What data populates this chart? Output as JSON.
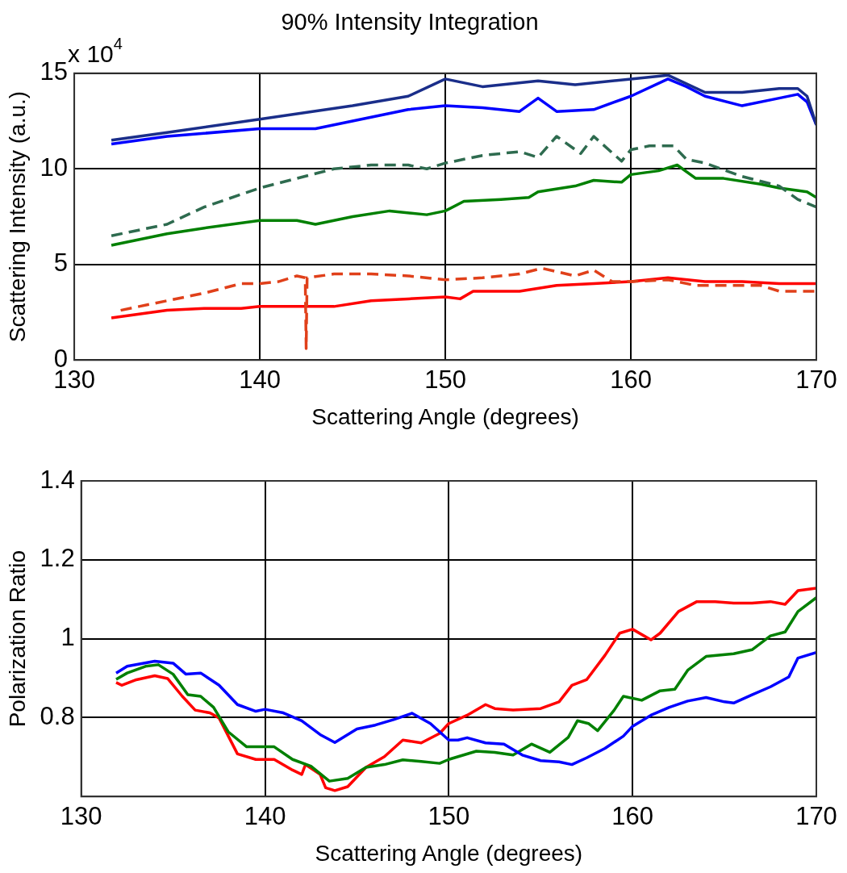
{
  "chart_data": [
    {
      "type": "line",
      "title": "90% Intensity Integration",
      "xlabel": "Scattering Angle (degrees)",
      "ylabel": "Scattering Intensity (a.u.)",
      "annotations": [
        "x 10$^{4}$"
      ],
      "xlim": [
        130,
        170
      ],
      "xticks": [
        130,
        140,
        150,
        160,
        170
      ],
      "ylim": [
        0,
        15
      ],
      "yticks": [
        0,
        5,
        10,
        15
      ],
      "grid": true,
      "legend": false,
      "marker": "none",
      "series": [
        {
          "color": "#1a2e8a",
          "line_style": "solid",
          "x": [
            132,
            135,
            140,
            145,
            148,
            150,
            152,
            155,
            157,
            160,
            162,
            164,
            166,
            168,
            169,
            169.5,
            170
          ],
          "values": [
            11.5,
            11.9,
            12.6,
            13.3,
            13.8,
            14.7,
            14.3,
            14.6,
            14.4,
            14.7,
            14.9,
            14.0,
            14.0,
            14.2,
            14.2,
            13.8,
            12.3
          ]
        },
        {
          "color": "#0000ff",
          "line_style": "solid",
          "x": [
            132,
            135,
            140,
            143,
            145,
            148,
            150,
            152,
            154,
            155,
            156,
            158,
            160,
            162,
            163,
            164,
            166,
            168,
            169,
            169.5,
            170
          ],
          "values": [
            11.3,
            11.7,
            12.1,
            12.1,
            12.5,
            13.1,
            13.3,
            13.2,
            13.0,
            13.7,
            13.0,
            13.1,
            13.8,
            14.7,
            14.3,
            13.8,
            13.3,
            13.7,
            13.9,
            13.5,
            12.3
          ]
        },
        {
          "color": "#2e6b4f",
          "line_style": "dashed",
          "x": [
            132,
            135,
            137,
            140,
            142,
            144,
            146,
            148,
            149,
            150,
            152,
            154,
            155,
            156,
            157.3,
            158,
            159.5,
            160,
            161,
            162.3,
            163,
            164,
            166,
            168,
            169,
            170
          ],
          "values": [
            6.5,
            7.1,
            8.0,
            9.0,
            9.5,
            10.0,
            10.2,
            10.2,
            10.0,
            10.3,
            10.7,
            10.9,
            10.6,
            11.7,
            10.8,
            11.7,
            10.4,
            11.0,
            11.2,
            11.2,
            10.5,
            10.3,
            9.6,
            9.1,
            8.4,
            8.0
          ]
        },
        {
          "color": "#008000",
          "line_style": "solid",
          "x": [
            132,
            135,
            137,
            140,
            142,
            143,
            145,
            147,
            149,
            150,
            151,
            153,
            154.5,
            155,
            157,
            158,
            159.5,
            160,
            161.5,
            162.5,
            163.5,
            165,
            167,
            168,
            169.5,
            170
          ],
          "values": [
            6.0,
            6.6,
            6.9,
            7.3,
            7.3,
            7.1,
            7.5,
            7.8,
            7.6,
            7.8,
            8.3,
            8.4,
            8.5,
            8.8,
            9.1,
            9.4,
            9.3,
            9.7,
            9.9,
            10.2,
            9.5,
            9.5,
            9.2,
            9.0,
            8.8,
            8.5
          ]
        },
        {
          "color": "#e0401a",
          "line_style": "dashed",
          "x": [
            132.5,
            135,
            137,
            139,
            140,
            141,
            142,
            142.45,
            142.5,
            142.55,
            144,
            146,
            148,
            150,
            152,
            154,
            155.2,
            157,
            158,
            159,
            160,
            162,
            163.5,
            165,
            167,
            168,
            169.5,
            170
          ],
          "values": [
            2.6,
            3.1,
            3.5,
            4.0,
            4.0,
            4.1,
            4.4,
            4.3,
            0.6,
            4.3,
            4.5,
            4.5,
            4.4,
            4.2,
            4.3,
            4.5,
            4.8,
            4.4,
            4.7,
            4.1,
            4.1,
            4.2,
            3.9,
            3.9,
            3.9,
            3.6,
            3.6,
            3.6
          ]
        },
        {
          "color": "#ff0000",
          "line_style": "solid",
          "x": [
            132,
            135,
            137,
            139,
            140,
            142,
            144,
            146,
            148,
            150,
            150.8,
            151.5,
            154,
            156,
            158,
            160,
            162,
            164,
            166,
            168,
            170
          ],
          "values": [
            2.2,
            2.6,
            2.7,
            2.7,
            2.8,
            2.8,
            2.8,
            3.1,
            3.2,
            3.3,
            3.2,
            3.6,
            3.6,
            3.9,
            4.0,
            4.1,
            4.3,
            4.1,
            4.1,
            4.0,
            4.0
          ]
        }
      ]
    },
    {
      "type": "line",
      "xlabel": "Scattering Angle (degrees)",
      "ylabel": "Polarization Ratio",
      "xlim": [
        130,
        170
      ],
      "xticks": [
        130,
        140,
        150,
        160,
        170
      ],
      "ylim": [
        0.6,
        1.4
      ],
      "yticks": [
        0.8,
        1,
        1.2,
        1.4
      ],
      "grid": true,
      "legend": false,
      "marker": "none",
      "series": [
        {
          "color": "#0000ff",
          "line_style": "solid",
          "x": [
            131.9,
            132.5,
            134,
            135,
            135.7,
            136.5,
            137.5,
            138.5,
            139.5,
            140,
            141,
            142,
            143,
            143.8,
            145,
            146,
            147,
            148,
            149,
            150,
            150.5,
            151,
            152,
            153,
            154,
            155,
            156,
            156.7,
            157.5,
            158.5,
            159.5,
            160,
            161,
            162,
            163,
            164,
            165,
            165.5,
            166.5,
            167.5,
            168.5,
            169,
            170
          ],
          "values": [
            0.913,
            0.93,
            0.943,
            0.938,
            0.91,
            0.913,
            0.882,
            0.833,
            0.816,
            0.821,
            0.812,
            0.792,
            0.757,
            0.737,
            0.771,
            0.781,
            0.795,
            0.811,
            0.785,
            0.743,
            0.743,
            0.749,
            0.736,
            0.733,
            0.705,
            0.691,
            0.688,
            0.681,
            0.698,
            0.722,
            0.753,
            0.778,
            0.806,
            0.826,
            0.842,
            0.851,
            0.84,
            0.837,
            0.858,
            0.878,
            0.903,
            0.951,
            0.965
          ]
        },
        {
          "color": "#008000",
          "line_style": "solid",
          "x": [
            131.9,
            132.5,
            133.5,
            134.2,
            135,
            135.8,
            136.5,
            137.2,
            138,
            139,
            140.5,
            141.5,
            142.5,
            143.5,
            144.5,
            145.5,
            146.5,
            147.5,
            148.5,
            149.5,
            150,
            151.5,
            152.5,
            153.5,
            154.5,
            155.5,
            156.5,
            157,
            157.6,
            158.1,
            159,
            159.5,
            160.5,
            161.5,
            162.3,
            163,
            164,
            165.5,
            166.5,
            167.5,
            168.3,
            169,
            170
          ],
          "values": [
            0.897,
            0.913,
            0.93,
            0.934,
            0.91,
            0.858,
            0.854,
            0.826,
            0.764,
            0.726,
            0.726,
            0.694,
            0.677,
            0.639,
            0.646,
            0.674,
            0.681,
            0.693,
            0.689,
            0.684,
            0.694,
            0.715,
            0.712,
            0.705,
            0.733,
            0.712,
            0.75,
            0.792,
            0.785,
            0.767,
            0.819,
            0.854,
            0.844,
            0.868,
            0.872,
            0.92,
            0.955,
            0.962,
            0.972,
            1.007,
            1.017,
            1.069,
            1.104
          ]
        },
        {
          "color": "#ff0000",
          "line_style": "solid",
          "x": [
            131.9,
            132.2,
            133,
            134,
            134.7,
            135.5,
            136.2,
            137,
            137.5,
            138.5,
            139.5,
            140.5,
            141.5,
            142,
            142.2,
            143,
            143.3,
            143.8,
            144.5,
            145.5,
            146.5,
            147.5,
            148.5,
            149.5,
            150,
            151,
            152,
            152.5,
            153.5,
            155,
            156,
            156.7,
            157.5,
            158.5,
            159.3,
            160,
            161,
            161.5,
            162.5,
            163.5,
            164.5,
            165.5,
            166.5,
            167.5,
            168.3,
            169,
            170
          ],
          "values": [
            0.889,
            0.882,
            0.896,
            0.906,
            0.899,
            0.854,
            0.819,
            0.812,
            0.799,
            0.708,
            0.694,
            0.694,
            0.667,
            0.656,
            0.681,
            0.656,
            0.622,
            0.615,
            0.625,
            0.674,
            0.701,
            0.743,
            0.736,
            0.76,
            0.785,
            0.806,
            0.833,
            0.823,
            0.819,
            0.823,
            0.84,
            0.882,
            0.896,
            0.958,
            1.014,
            1.024,
            0.997,
            1.014,
            1.069,
            1.094,
            1.094,
            1.09,
            1.09,
            1.094,
            1.087,
            1.122,
            1.128
          ]
        }
      ]
    }
  ]
}
